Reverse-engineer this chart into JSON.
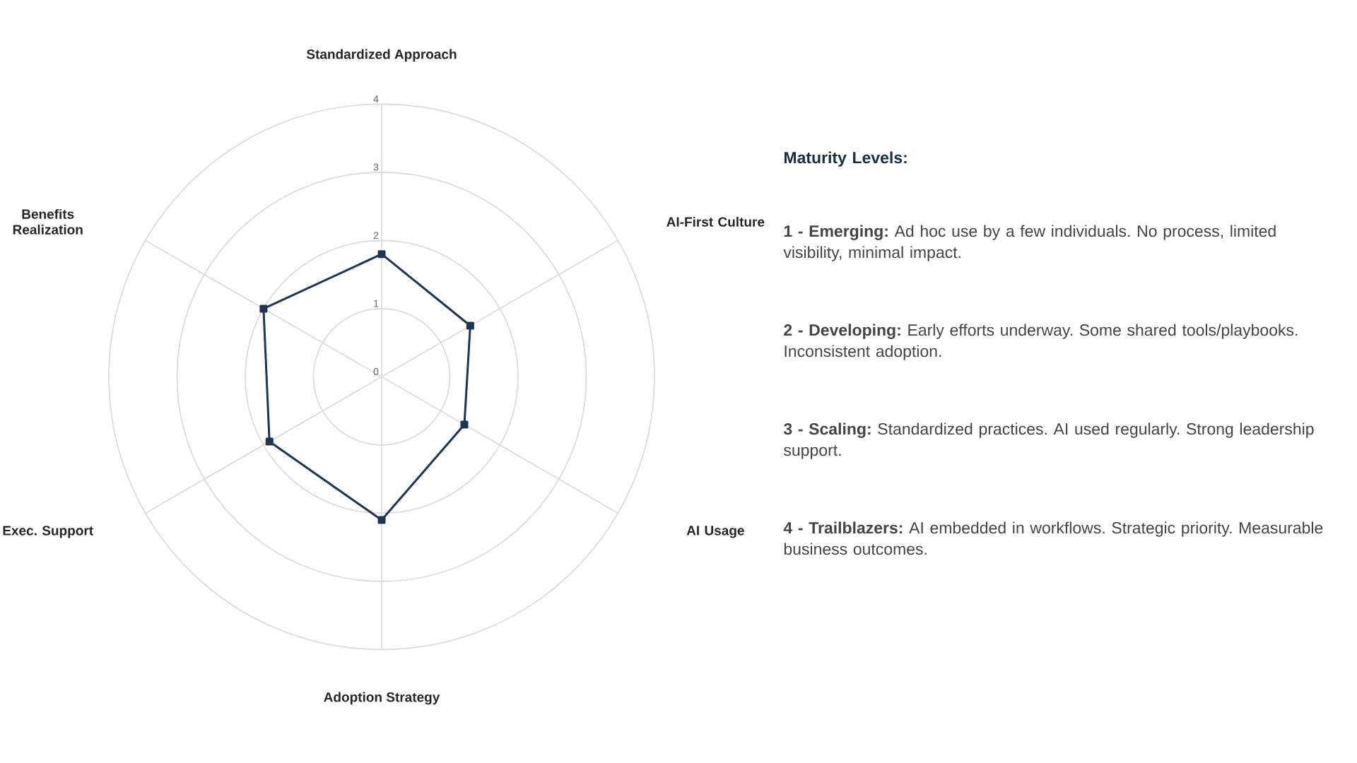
{
  "chart_data": {
    "type": "radar",
    "categories": [
      "Standardized Approach",
      "AI-First Culture",
      "AI Usage",
      "Adoption Strategy",
      "Exec. Support",
      "Benefits Realization"
    ],
    "series": [
      {
        "color": "#1f3550",
        "values": [
          1.8,
          1.5,
          1.4,
          2.1,
          1.9,
          2.0
        ]
      }
    ],
    "ylim": [
      0,
      4
    ],
    "yticks": [
      0,
      1,
      2,
      3,
      4
    ],
    "grid": true,
    "marker": "square",
    "line_style": "solid",
    "annotations": [
      "**Maturity Levels:**",
      "**1 - Emerging:** Ad hoc use by a few individuals. No process, limited visibility, minimal impact.",
      "**2 - Developing:** Early efforts underway. Some shared tools/playbooks. Inconsistent adoption.",
      "**3 - Scaling:** Standardized practices. AI used regularly. Strong leadership support.",
      "**4 - Trailblazers:** AI embedded in workflows. Strategic priority. Measurable business outcomes."
    ]
  }
}
